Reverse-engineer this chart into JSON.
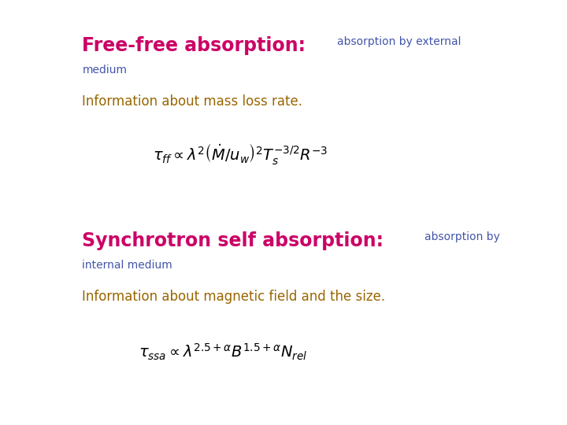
{
  "background_color": "#ffffff",
  "title1": "Free-free absorption:",
  "title1_color": "#cc0066",
  "subtitle1a": "absorption by external",
  "subtitle1b": "medium",
  "subtitle1_color": "#4455aa",
  "info1": "Information about mass loss rate.",
  "info1_color": "#996600",
  "title2": "Synchrotron self absorption:",
  "title2_color": "#cc0066",
  "subtitle2a": "absorption by",
  "subtitle2b": "internal medium",
  "subtitle2_color": "#4455aa",
  "info2": "Information about magnetic field and the size.",
  "info2_color": "#996600",
  "figsize": [
    7.2,
    5.4
  ],
  "dpi": 100
}
